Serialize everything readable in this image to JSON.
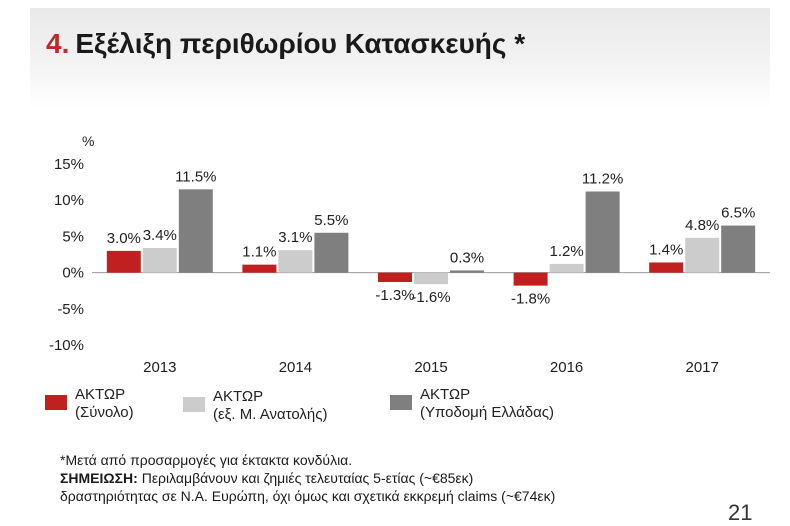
{
  "title": {
    "number": "4.",
    "text": "Εξέλιξη περιθωρίου Κατασκευής *"
  },
  "chart_data": {
    "type": "bar",
    "ylabel": "%",
    "ylim": [
      -10,
      15
    ],
    "yticks": [
      15,
      10,
      5,
      0,
      -5,
      -10
    ],
    "ytick_labels": [
      "15%",
      "10%",
      "5%",
      "0%",
      "-5%",
      "-10%"
    ],
    "categories": [
      "2013",
      "2014",
      "2015",
      "2016",
      "2017"
    ],
    "series": [
      {
        "name": "ΑΚΤΩΡ (Σύνολο)",
        "color": "#c0201f",
        "values": [
          3.0,
          1.1,
          -1.3,
          -1.8,
          1.4
        ],
        "labels": [
          "3.0%",
          "1.1%",
          "-1.3%",
          "-1.8%",
          "1.4%"
        ]
      },
      {
        "name": "ΑΚΤΩΡ (εξ. Μ. Ανατολής)",
        "color": "#cccccc",
        "values": [
          3.4,
          3.1,
          -1.6,
          1.2,
          4.8
        ],
        "labels": [
          "3.4%",
          "3.1%",
          "-1.6%",
          "1.2%",
          "4.8%"
        ]
      },
      {
        "name": "ΑΚΤΩΡ (Υποδομή Ελλάδας)",
        "color": "#7f7f7f",
        "values": [
          11.5,
          5.5,
          0.3,
          11.2,
          6.5
        ],
        "labels": [
          "11.5%",
          "5.5%",
          "0.3%",
          "11.2%",
          "6.5%"
        ]
      }
    ],
    "grid": false,
    "legend_position": "bottom"
  },
  "legend": [
    {
      "line1": "ΑΚΤΩΡ",
      "line2": "(Σύνολο)",
      "color": "#c0201f"
    },
    {
      "line1": "ΑΚΤΩΡ",
      "line2": "(εξ. Μ. Ανατολής)",
      "color": "#cccccc"
    },
    {
      "line1": "ΑΚΤΩΡ",
      "line2": "(Υποδομή Ελλάδας)",
      "color": "#7f7f7f"
    }
  ],
  "notes": {
    "line1": "*Μετά από προσαρμογές για έκτακτα κονδύλια.",
    "label": "ΣΗΜΕΙΩΣΗ:",
    "line2": " Περιλαμβάνουν και ζημιές τελευταίας 5-ετίας (~€85εκ)",
    "line3": "δραστηριότητας σε Ν.Α. Ευρώπη, όχι όμως και σχετικά εκκρεμή claims (~€74εκ)"
  },
  "page_number": "21"
}
